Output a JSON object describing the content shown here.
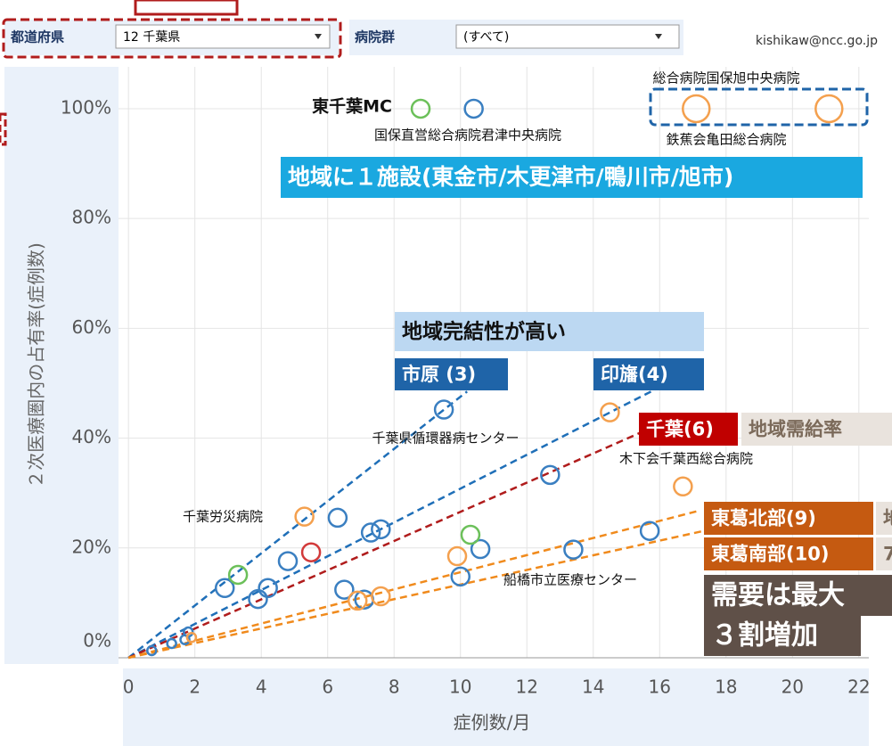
{
  "filters": [
    {
      "label": "都道府県",
      "value": "12 千葉県"
    },
    {
      "label": "病院群",
      "value": "(すべて)"
    }
  ],
  "user": "kishikaw@ncc.go.jp",
  "chart_data": {
    "type": "scatter",
    "ylabel": "２次医療圏内の占有率(症例数)",
    "xlabel": "症例数/月",
    "xlim": [
      -0.3,
      22.3
    ],
    "ylim": [
      0,
      106
    ],
    "xticks": [
      0,
      2,
      4,
      6,
      8,
      10,
      12,
      14,
      16,
      18,
      20,
      22
    ],
    "yticks": [
      {
        "value": 0,
        "label": "0%"
      },
      {
        "value": 20,
        "label": "20%"
      },
      {
        "value": 40,
        "label": "40%"
      },
      {
        "value": 60,
        "label": "60%"
      },
      {
        "value": 80,
        "label": "80%"
      },
      {
        "value": 100,
        "label": "100%"
      }
    ],
    "grid": true,
    "series": [
      {
        "color": "#3a7fc1",
        "x": [
          10.4,
          9.5,
          12.7,
          15.7,
          13.4,
          10.6,
          10.0,
          6.3,
          7.3,
          7.6,
          4.8,
          2.9,
          6.5,
          7.1,
          4.2,
          3.9,
          1.8,
          1.7,
          1.3,
          0.7
        ],
        "values": [
          100,
          45.2,
          33.3,
          23.1,
          19.7,
          19.8,
          14.8,
          25.5,
          22.8,
          23.4,
          17.6,
          12.7,
          12.4,
          10.6,
          12.7,
          10.7,
          4.7,
          3.3,
          2.6,
          1.3
        ]
      },
      {
        "color": "#f4a04e",
        "x": [
          17.1,
          21.1,
          14.5,
          16.7,
          9.9,
          5.3,
          6.9,
          7.6,
          1.9
        ],
        "values": [
          100,
          100,
          44.7,
          31.2,
          18.5,
          25.7,
          10.4,
          11.2,
          3.7
        ]
      },
      {
        "color": "#6cc05a",
        "x": [
          8.8,
          10.3,
          3.3
        ],
        "values": [
          100,
          22.4,
          15.1
        ]
      },
      {
        "color": "#d23a3a",
        "x": [
          5.5
        ],
        "values": [
          19.2
        ]
      }
    ],
    "trend_lines": [
      {
        "color": "#1f6fb8",
        "x": [
          0,
          10.2
        ],
        "y": [
          0,
          48.5
        ]
      },
      {
        "color": "#1f6fb8",
        "x": [
          0,
          16.1
        ],
        "y": [
          0,
          49.6
        ]
      },
      {
        "color": "#b01c1c",
        "x": [
          0,
          15.8
        ],
        "y": [
          0,
          42
        ]
      },
      {
        "color": "#f08a1c",
        "x": [
          0,
          17.2
        ],
        "y": [
          0,
          26.8
        ]
      },
      {
        "color": "#f08a1c",
        "x": [
          0,
          17.4
        ],
        "y": [
          0,
          23.2
        ]
      }
    ],
    "annotations": [
      "総合病院国保旭中央病院",
      "東千葉MC",
      "国保直営総合病院君津中央病院",
      "鉄蕉会亀田総合病院",
      "千葉県循環器病センター",
      "木下会千葉西総合病院",
      "千葉労災病院",
      "船橋市立医療センター"
    ],
    "callouts": [
      {
        "text": "地域に１施設(東金市/木更津市/鴨川市/旭市)",
        "color": "#1aa8e0"
      },
      {
        "text": "地域完結性が高い",
        "color": "#bcd8f2"
      },
      {
        "text": "市原 (3)",
        "color": "#1f64a8"
      },
      {
        "text": "印旛(4)",
        "color": "#1f64a8"
      },
      {
        "text": "千葉(6)",
        "color": "#c00000"
      },
      {
        "text": "地域需給率",
        "color": "#e9e3dd"
      },
      {
        "text": "東葛北部(9)",
        "color": "#c55a11"
      },
      {
        "text": "地",
        "color": "#e9e3dd"
      },
      {
        "text": "東葛南部(10)",
        "color": "#c55a11"
      },
      {
        "text": "7",
        "color": "#e9e3dd"
      },
      {
        "text": "需要は最大",
        "color": "#5f5048"
      },
      {
        "text": "３割増加",
        "color": "#5f5048"
      }
    ]
  }
}
